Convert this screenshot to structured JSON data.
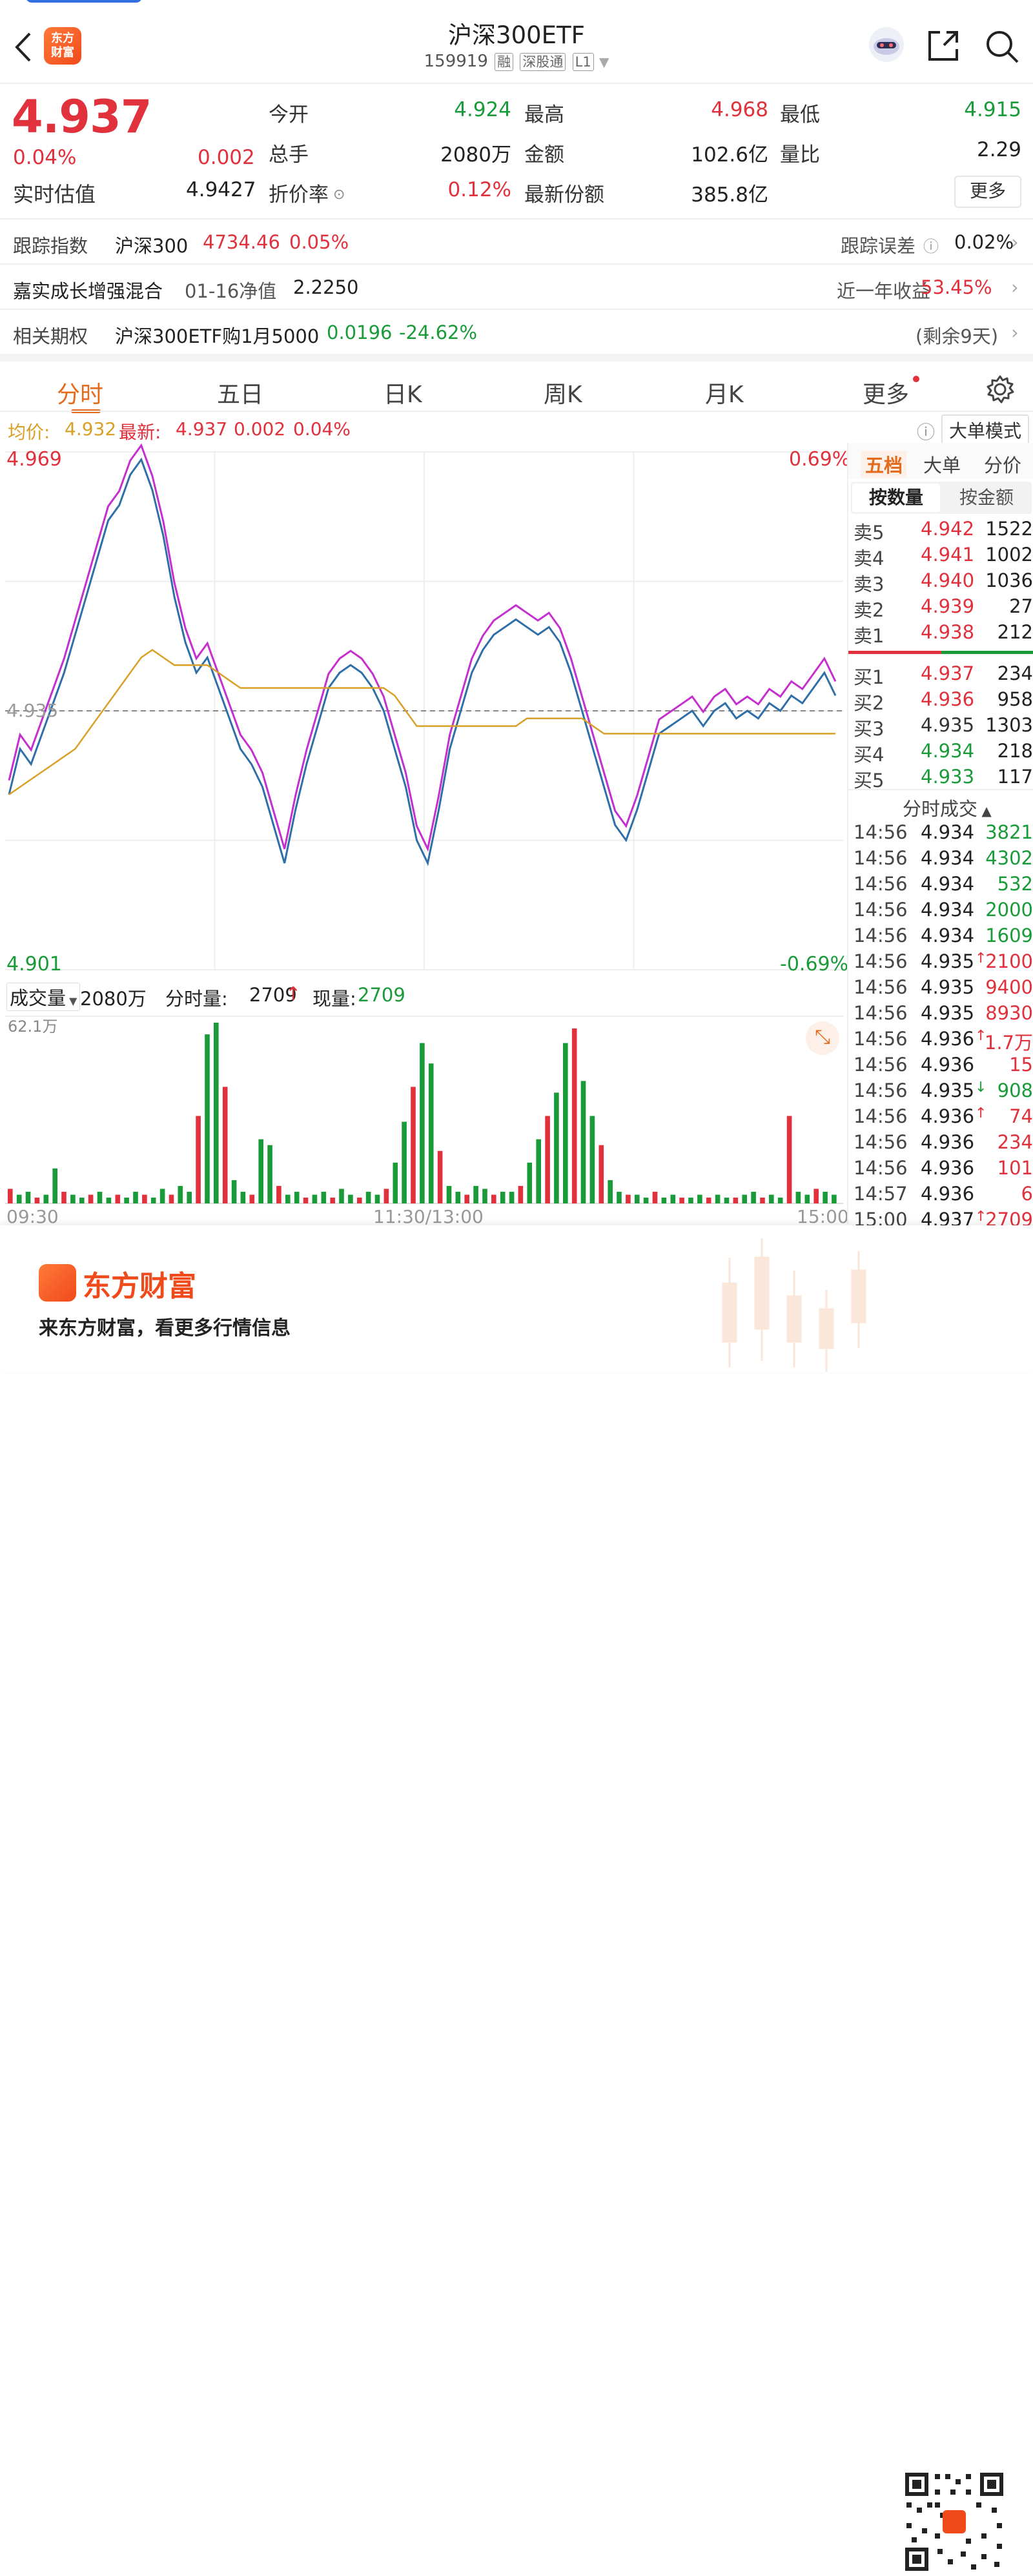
{
  "header": {
    "title": "沪深300ETF",
    "code": "159919",
    "tags": [
      "融",
      "深股通",
      "L1"
    ],
    "logo_text": "东方财富"
  },
  "quote": {
    "price": "4.937",
    "change_pct": "0.04%",
    "change": "0.002",
    "est_label": "实时估值",
    "est_value": "4.9427",
    "fields": [
      {
        "label": "今开",
        "value": "4.924",
        "color": "green"
      },
      {
        "label": "最高",
        "value": "4.968",
        "color": "red"
      },
      {
        "label": "最低",
        "value": "4.915",
        "color": "green"
      },
      {
        "label": "总手",
        "value": "2080万",
        "color": "black"
      },
      {
        "label": "金额",
        "value": "102.6亿",
        "color": "black"
      },
      {
        "label": "量比",
        "value": "2.29",
        "color": "black"
      },
      {
        "label": "折价率",
        "value": "0.12%",
        "color": "red"
      },
      {
        "label": "最新份额",
        "value": "385.8亿",
        "color": "black"
      }
    ],
    "more_label": "更多"
  },
  "info_rows": {
    "tracking": {
      "label": "跟踪指数",
      "index": "沪深300",
      "value": "4734.46",
      "pct": "0.05%",
      "err_label": "跟踪误差",
      "err_value": "0.02%"
    },
    "fund": {
      "name": "嘉实成长增强混合",
      "date_label": "01-16净值",
      "nav": "2.2250",
      "ret_label": "近一年收益",
      "ret_value": "53.45%"
    },
    "option": {
      "label": "相关期权",
      "name": "沪深300ETF购1月5000",
      "price": "0.0196",
      "pct": "-24.62%",
      "remain": "(剩余9天)"
    }
  },
  "tabs": [
    "分时",
    "五日",
    "日K",
    "周K",
    "月K",
    "更多"
  ],
  "chart_info": {
    "avg_label": "均价:",
    "avg_value": "4.932",
    "latest_label": "最新:",
    "latest_value": "4.937",
    "latest_change": "0.002",
    "latest_pct": "0.04%",
    "mode_label": "大单模式"
  },
  "chart_data": {
    "type": "line",
    "ylim": [
      4.901,
      4.969
    ],
    "y_top_label": "4.969",
    "y_bottom_label": "4.901",
    "pct_top_label": "0.69%",
    "pct_bottom_label": "-0.69%",
    "prev_close_label": "4.935",
    "x_labels": [
      "09:30",
      "11:30/13:00",
      "15:00"
    ],
    "series": [
      {
        "name": "最新",
        "values": [
          4.924,
          4.93,
          4.928,
          4.932,
          4.936,
          4.94,
          4.945,
          4.95,
          4.955,
          4.96,
          4.962,
          4.966,
          4.968,
          4.964,
          4.958,
          4.95,
          4.944,
          4.94,
          4.942,
          4.938,
          4.934,
          4.93,
          4.928,
          4.925,
          4.92,
          4.915,
          4.922,
          4.928,
          4.933,
          4.938,
          4.94,
          4.941,
          4.94,
          4.938,
          4.935,
          4.93,
          4.925,
          4.918,
          4.915,
          4.922,
          4.93,
          4.935,
          4.94,
          4.943,
          4.945,
          4.946,
          4.947,
          4.946,
          4.945,
          4.946,
          4.944,
          4.94,
          4.935,
          4.93,
          4.925,
          4.92,
          4.918,
          4.922,
          4.927,
          4.932,
          4.933,
          4.934,
          4.935,
          4.933,
          4.935,
          4.936,
          4.934,
          4.935,
          4.934,
          4.936,
          4.935,
          4.937,
          4.936,
          4.938,
          4.94,
          4.937
        ]
      },
      {
        "name": "均价",
        "values": [
          4.924,
          4.925,
          4.926,
          4.927,
          4.928,
          4.929,
          4.93,
          4.932,
          4.934,
          4.936,
          4.938,
          4.94,
          4.942,
          4.943,
          4.942,
          4.941,
          4.941,
          4.941,
          4.941,
          4.94,
          4.939,
          4.938,
          4.938,
          4.938,
          4.938,
          4.938,
          4.938,
          4.938,
          4.938,
          4.938,
          4.938,
          4.938,
          4.938,
          4.938,
          4.938,
          4.937,
          4.935,
          4.933,
          4.933,
          4.933,
          4.933,
          4.933,
          4.933,
          4.933,
          4.933,
          4.933,
          4.933,
          4.934,
          4.934,
          4.934,
          4.934,
          4.934,
          4.934,
          4.933,
          4.932,
          4.932,
          4.932,
          4.932,
          4.932,
          4.932,
          4.932,
          4.932,
          4.932,
          4.932,
          4.932,
          4.932,
          4.932,
          4.932,
          4.932,
          4.932,
          4.932,
          4.932,
          4.932,
          4.932,
          4.932,
          4.932
        ]
      }
    ]
  },
  "volume": {
    "label": "成交量",
    "total": "2080万",
    "period_label": "分时量:",
    "period_value": "2709",
    "cur_label": "现量:",
    "cur_value": "2709",
    "max_label": "62.1万",
    "bars": [
      5,
      3,
      4,
      2,
      3,
      12,
      4,
      3,
      2,
      3,
      4,
      2,
      3,
      2,
      4,
      3,
      2,
      5,
      3,
      6,
      4,
      30,
      58,
      62,
      40,
      8,
      4,
      3,
      22,
      20,
      6,
      3,
      4,
      2,
      3,
      4,
      2,
      5,
      3,
      2,
      4,
      3,
      5,
      14,
      28,
      40,
      55,
      48,
      18,
      6,
      4,
      3,
      6,
      5,
      3,
      4,
      4,
      6,
      14,
      22,
      30,
      38,
      55,
      60,
      42,
      30,
      20,
      8,
      4,
      3,
      3,
      2,
      4,
      2,
      3,
      2,
      2,
      3,
      2,
      3,
      2,
      2,
      3,
      4,
      2,
      3,
      2,
      30,
      4,
      3,
      5,
      4,
      3
    ]
  },
  "side": {
    "tabs": [
      "五档",
      "大单",
      "分价"
    ],
    "subtabs": [
      "按数量",
      "按金额"
    ],
    "asks": [
      {
        "label": "卖5",
        "price": "4.942",
        "vol": "1522"
      },
      {
        "label": "卖4",
        "price": "4.941",
        "vol": "1002"
      },
      {
        "label": "卖3",
        "price": "4.940",
        "vol": "1036"
      },
      {
        "label": "卖2",
        "price": "4.939",
        "vol": "27"
      },
      {
        "label": "卖1",
        "price": "4.938",
        "vol": "212"
      }
    ],
    "bids": [
      {
        "label": "买1",
        "price": "4.937",
        "vol": "234"
      },
      {
        "label": "买2",
        "price": "4.936",
        "vol": "958"
      },
      {
        "label": "买3",
        "price": "4.935",
        "vol": "1303"
      },
      {
        "label": "买4",
        "price": "4.934",
        "vol": "218"
      },
      {
        "label": "买5",
        "price": "4.933",
        "vol": "117"
      }
    ],
    "trades_label": "分时成交",
    "trades": [
      {
        "time": "14:56",
        "price": "4.934",
        "vol": "3821",
        "color": "green",
        "arrow": ""
      },
      {
        "time": "14:56",
        "price": "4.934",
        "vol": "4302",
        "color": "green",
        "arrow": ""
      },
      {
        "time": "14:56",
        "price": "4.934",
        "vol": "532",
        "color": "green",
        "arrow": ""
      },
      {
        "time": "14:56",
        "price": "4.934",
        "vol": "2000",
        "color": "green",
        "arrow": ""
      },
      {
        "time": "14:56",
        "price": "4.934",
        "vol": "1609",
        "color": "green",
        "arrow": ""
      },
      {
        "time": "14:56",
        "price": "4.935",
        "vol": "2100",
        "color": "red",
        "arrow": "↑"
      },
      {
        "time": "14:56",
        "price": "4.935",
        "vol": "9400",
        "color": "red",
        "arrow": ""
      },
      {
        "time": "14:56",
        "price": "4.935",
        "vol": "8930",
        "color": "red",
        "arrow": ""
      },
      {
        "time": "14:56",
        "price": "4.936",
        "vol": "1.7万",
        "color": "red",
        "arrow": "↑"
      },
      {
        "time": "14:56",
        "price": "4.936",
        "vol": "15",
        "color": "red",
        "arrow": ""
      },
      {
        "time": "14:56",
        "price": "4.935",
        "vol": "908",
        "color": "green",
        "arrow": "↓"
      },
      {
        "time": "14:56",
        "price": "4.936",
        "vol": "74",
        "color": "red",
        "arrow": "↑"
      },
      {
        "time": "14:56",
        "price": "4.936",
        "vol": "234",
        "color": "red",
        "arrow": ""
      },
      {
        "time": "14:56",
        "price": "4.936",
        "vol": "101",
        "color": "red",
        "arrow": ""
      },
      {
        "time": "14:57",
        "price": "4.936",
        "vol": "6",
        "color": "red",
        "arrow": ""
      },
      {
        "time": "15:00",
        "price": "4.937",
        "vol": "2709",
        "color": "red",
        "arrow": "↑"
      }
    ]
  },
  "footer": {
    "brand": "东方财富",
    "slogan": "来东方财富，看更多行情信息"
  },
  "colors": {
    "up": "#e0313c",
    "down": "#1a9b3a",
    "price_line": "#2f6fa8",
    "avg_line": "#d9a028",
    "accent": "#e46a1c"
  }
}
